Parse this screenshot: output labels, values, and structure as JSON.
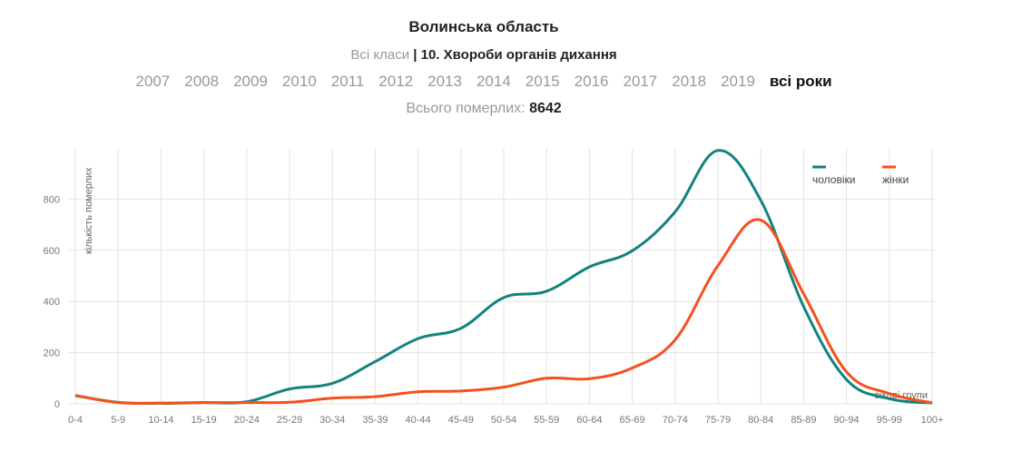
{
  "header": {
    "region": "Волинська область",
    "class_all": "Всі класи",
    "class_selected": "| 10. Хвороби органів дихання",
    "total_label": "Всього померлих:",
    "total_value": "8642"
  },
  "years": [
    "2007",
    "2008",
    "2009",
    "2010",
    "2011",
    "2012",
    "2013",
    "2014",
    "2015",
    "2016",
    "2017",
    "2018",
    "2019",
    "всі роки"
  ],
  "active_year": "всі роки",
  "chart_data": {
    "type": "line",
    "title": "Волинська область",
    "xlabel": "вікові групи",
    "ylabel": "кількість померлих",
    "categories": [
      "0-4",
      "5-9",
      "10-14",
      "15-19",
      "20-24",
      "25-29",
      "30-34",
      "35-39",
      "40-44",
      "45-49",
      "50-54",
      "55-59",
      "60-64",
      "65-69",
      "70-74",
      "75-79",
      "80-84",
      "85-89",
      "90-94",
      "95-99",
      "100+"
    ],
    "yticks": [
      0,
      200,
      400,
      600,
      800
    ],
    "ylim": [
      0,
      1000
    ],
    "grid": true,
    "legend_position": "top-right",
    "series": [
      {
        "name": "чоловіки",
        "color": "#12837d",
        "values": [
          32,
          6,
          2,
          5,
          8,
          58,
          80,
          165,
          255,
          295,
          415,
          440,
          535,
          598,
          750,
          990,
          795,
          380,
          95,
          20,
          3
        ]
      },
      {
        "name": "жінки",
        "color": "#f4511e",
        "values": [
          33,
          5,
          3,
          5,
          5,
          6,
          22,
          28,
          47,
          50,
          65,
          100,
          98,
          140,
          250,
          540,
          718,
          430,
          125,
          40,
          4
        ]
      }
    ]
  }
}
